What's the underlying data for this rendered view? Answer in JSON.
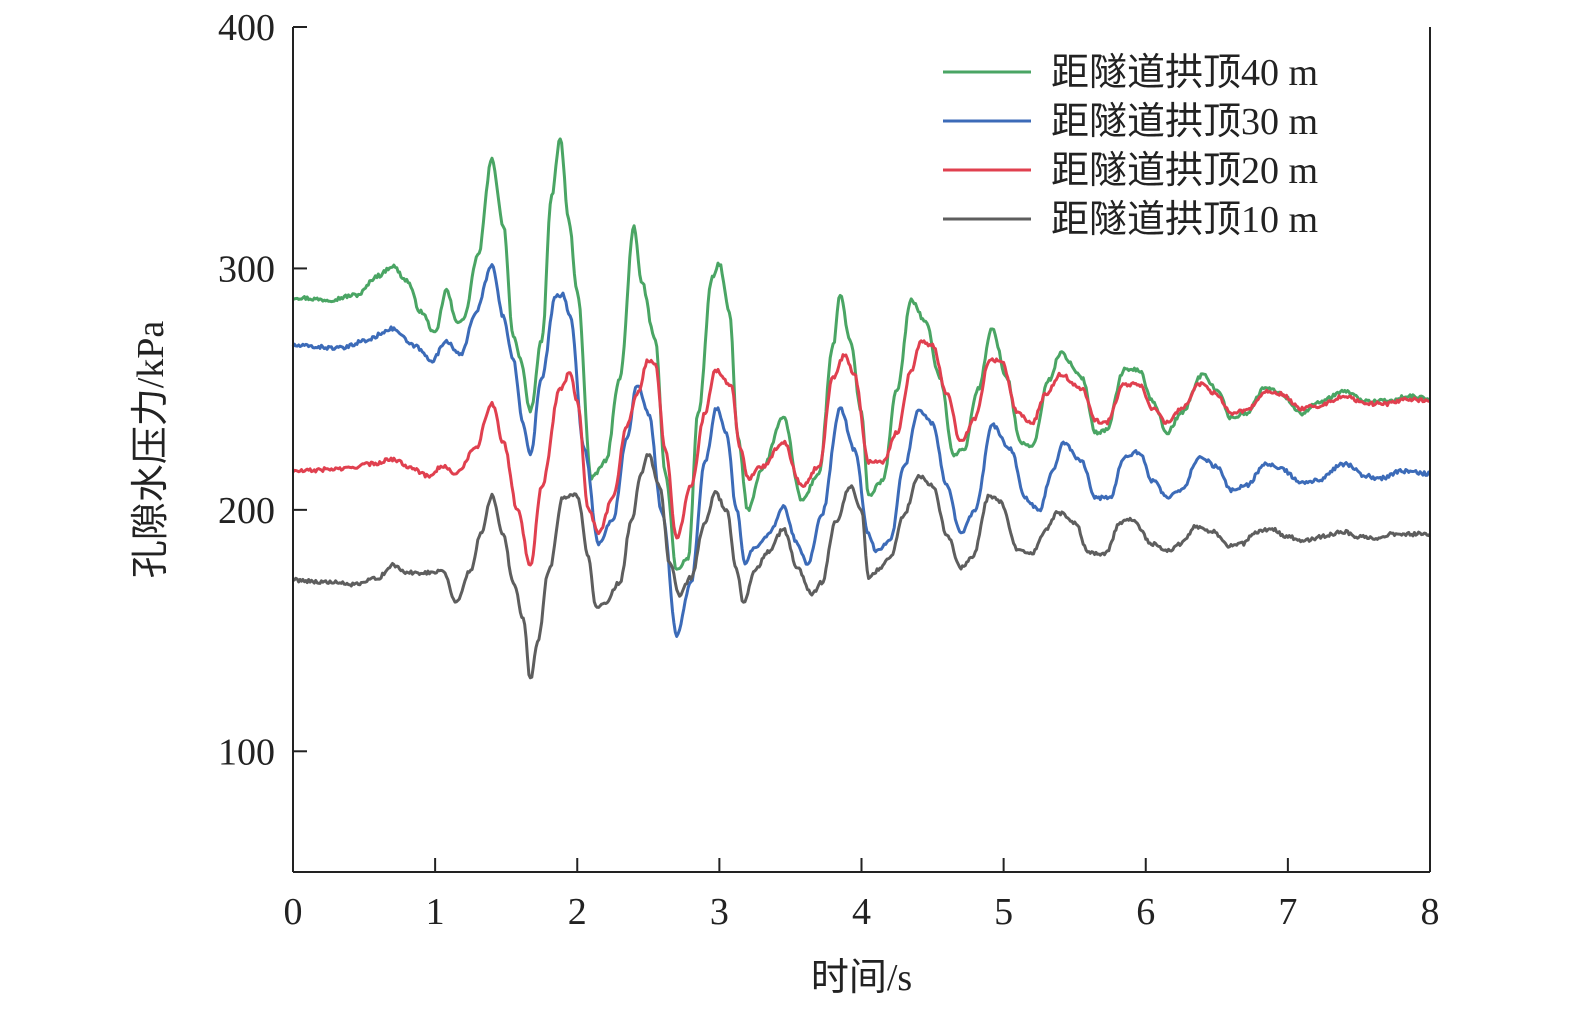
{
  "chart_data": {
    "type": "line",
    "title": "",
    "xlabel": "时间/s",
    "ylabel": "孔隙水压力/kPa",
    "xlim": [
      0,
      8
    ],
    "ylim": [
      50,
      400
    ],
    "xticks": [
      0,
      1,
      2,
      3,
      4,
      5,
      6,
      7,
      8
    ],
    "yticks": [
      100,
      200,
      300,
      400
    ],
    "grid": false,
    "legend_position": "top-right",
    "series": [
      {
        "name": "距隧道拱顶40 m",
        "color": "#4aa564",
        "points": [
          [
            0,
            288
          ],
          [
            0.25,
            287
          ],
          [
            0.45,
            289
          ],
          [
            0.6,
            297
          ],
          [
            0.7,
            301
          ],
          [
            0.8,
            295
          ],
          [
            0.9,
            282
          ],
          [
            1.0,
            273
          ],
          [
            1.08,
            291
          ],
          [
            1.15,
            278
          ],
          [
            1.2,
            279
          ],
          [
            1.3,
            305
          ],
          [
            1.4,
            345
          ],
          [
            1.48,
            318
          ],
          [
            1.55,
            272
          ],
          [
            1.6,
            262
          ],
          [
            1.67,
            241
          ],
          [
            1.75,
            270
          ],
          [
            1.82,
            330
          ],
          [
            1.88,
            354
          ],
          [
            1.94,
            320
          ],
          [
            2.0,
            290
          ],
          [
            2.1,
            213
          ],
          [
            2.2,
            220
          ],
          [
            2.3,
            255
          ],
          [
            2.4,
            317
          ],
          [
            2.45,
            295
          ],
          [
            2.55,
            270
          ],
          [
            2.62,
            215
          ],
          [
            2.7,
            175
          ],
          [
            2.78,
            180
          ],
          [
            2.85,
            240
          ],
          [
            2.95,
            296
          ],
          [
            3.0,
            302
          ],
          [
            3.07,
            282
          ],
          [
            3.13,
            230
          ],
          [
            3.2,
            200
          ],
          [
            3.3,
            217
          ],
          [
            3.45,
            238
          ],
          [
            3.58,
            204
          ],
          [
            3.7,
            215
          ],
          [
            3.8,
            268
          ],
          [
            3.85,
            289
          ],
          [
            3.92,
            270
          ],
          [
            4.0,
            240
          ],
          [
            4.05,
            206
          ],
          [
            4.15,
            212
          ],
          [
            4.25,
            250
          ],
          [
            4.35,
            287
          ],
          [
            4.45,
            278
          ],
          [
            4.55,
            255
          ],
          [
            4.65,
            223
          ],
          [
            4.72,
            225
          ],
          [
            4.82,
            250
          ],
          [
            4.92,
            275
          ],
          [
            5.02,
            255
          ],
          [
            5.12,
            228
          ],
          [
            5.2,
            226
          ],
          [
            5.32,
            254
          ],
          [
            5.4,
            265
          ],
          [
            5.55,
            255
          ],
          [
            5.65,
            232
          ],
          [
            5.72,
            233
          ],
          [
            5.85,
            258
          ],
          [
            5.95,
            258
          ],
          [
            6.05,
            245
          ],
          [
            6.15,
            232
          ],
          [
            6.25,
            240
          ],
          [
            6.4,
            256
          ],
          [
            6.5,
            250
          ],
          [
            6.6,
            238
          ],
          [
            6.7,
            240
          ],
          [
            6.85,
            251
          ],
          [
            6.95,
            248
          ],
          [
            7.1,
            240
          ],
          [
            7.2,
            244
          ],
          [
            7.4,
            249
          ],
          [
            7.55,
            245
          ],
          [
            7.7,
            245
          ],
          [
            7.85,
            247
          ],
          [
            8.0,
            246
          ]
        ]
      },
      {
        "name": "距隧道拱顶30 m",
        "color": "#3c6bb8",
        "points": [
          [
            0,
            268
          ],
          [
            0.35,
            267
          ],
          [
            0.5,
            270
          ],
          [
            0.7,
            275
          ],
          [
            0.85,
            268
          ],
          [
            0.98,
            262
          ],
          [
            1.08,
            270
          ],
          [
            1.18,
            264
          ],
          [
            1.28,
            281
          ],
          [
            1.4,
            301
          ],
          [
            1.48,
            280
          ],
          [
            1.55,
            262
          ],
          [
            1.62,
            235
          ],
          [
            1.67,
            223
          ],
          [
            1.75,
            255
          ],
          [
            1.85,
            289
          ],
          [
            1.9,
            289
          ],
          [
            1.95,
            280
          ],
          [
            2.05,
            225
          ],
          [
            2.15,
            186
          ],
          [
            2.25,
            196
          ],
          [
            2.35,
            230
          ],
          [
            2.42,
            252
          ],
          [
            2.5,
            240
          ],
          [
            2.6,
            198
          ],
          [
            2.7,
            148
          ],
          [
            2.8,
            170
          ],
          [
            2.9,
            220
          ],
          [
            2.98,
            242
          ],
          [
            3.05,
            232
          ],
          [
            3.12,
            200
          ],
          [
            3.18,
            178
          ],
          [
            3.25,
            185
          ],
          [
            3.35,
            190
          ],
          [
            3.45,
            201
          ],
          [
            3.55,
            186
          ],
          [
            3.62,
            177
          ],
          [
            3.72,
            198
          ],
          [
            3.85,
            242
          ],
          [
            3.95,
            225
          ],
          [
            4.05,
            190
          ],
          [
            4.1,
            183
          ],
          [
            4.2,
            187
          ],
          [
            4.3,
            218
          ],
          [
            4.4,
            241
          ],
          [
            4.5,
            236
          ],
          [
            4.6,
            210
          ],
          [
            4.7,
            190
          ],
          [
            4.8,
            200
          ],
          [
            4.92,
            235
          ],
          [
            5.05,
            225
          ],
          [
            5.15,
            205
          ],
          [
            5.25,
            200
          ],
          [
            5.35,
            217
          ],
          [
            5.42,
            228
          ],
          [
            5.55,
            220
          ],
          [
            5.65,
            205
          ],
          [
            5.75,
            205
          ],
          [
            5.85,
            222
          ],
          [
            5.95,
            224
          ],
          [
            6.05,
            212
          ],
          [
            6.15,
            205
          ],
          [
            6.25,
            208
          ],
          [
            6.38,
            222
          ],
          [
            6.5,
            218
          ],
          [
            6.6,
            208
          ],
          [
            6.7,
            210
          ],
          [
            6.85,
            219
          ],
          [
            6.95,
            217
          ],
          [
            7.1,
            211
          ],
          [
            7.2,
            212
          ],
          [
            7.4,
            219
          ],
          [
            7.55,
            214
          ],
          [
            7.65,
            213
          ],
          [
            7.8,
            216
          ],
          [
            8.0,
            215
          ]
        ]
      },
      {
        "name": "距隧道拱顶20 m",
        "color": "#e0404f",
        "points": [
          [
            0,
            216
          ],
          [
            0.35,
            217
          ],
          [
            0.55,
            219
          ],
          [
            0.7,
            221
          ],
          [
            0.82,
            218
          ],
          [
            0.95,
            214
          ],
          [
            1.05,
            218
          ],
          [
            1.15,
            215
          ],
          [
            1.28,
            225
          ],
          [
            1.4,
            244
          ],
          [
            1.48,
            228
          ],
          [
            1.58,
            200
          ],
          [
            1.67,
            177
          ],
          [
            1.75,
            210
          ],
          [
            1.88,
            250
          ],
          [
            1.95,
            257
          ],
          [
            2.0,
            245
          ],
          [
            2.08,
            200
          ],
          [
            2.15,
            190
          ],
          [
            2.25,
            205
          ],
          [
            2.35,
            235
          ],
          [
            2.42,
            248
          ],
          [
            2.5,
            262
          ],
          [
            2.55,
            260
          ],
          [
            2.62,
            225
          ],
          [
            2.7,
            188
          ],
          [
            2.8,
            210
          ],
          [
            2.9,
            240
          ],
          [
            2.97,
            258
          ],
          [
            3.08,
            252
          ],
          [
            3.15,
            225
          ],
          [
            3.2,
            213
          ],
          [
            3.3,
            218
          ],
          [
            3.45,
            228
          ],
          [
            3.58,
            210
          ],
          [
            3.7,
            218
          ],
          [
            3.8,
            255
          ],
          [
            3.88,
            264
          ],
          [
            3.95,
            256
          ],
          [
            4.05,
            220
          ],
          [
            4.15,
            220
          ],
          [
            4.25,
            232
          ],
          [
            4.35,
            258
          ],
          [
            4.42,
            270
          ],
          [
            4.5,
            268
          ],
          [
            4.6,
            248
          ],
          [
            4.7,
            228
          ],
          [
            4.8,
            238
          ],
          [
            4.9,
            262
          ],
          [
            4.98,
            262
          ],
          [
            5.1,
            240
          ],
          [
            5.2,
            236
          ],
          [
            5.3,
            248
          ],
          [
            5.4,
            256
          ],
          [
            5.55,
            250
          ],
          [
            5.65,
            237
          ],
          [
            5.72,
            236
          ],
          [
            5.85,
            252
          ],
          [
            5.95,
            252
          ],
          [
            6.05,
            242
          ],
          [
            6.15,
            236
          ],
          [
            6.25,
            242
          ],
          [
            6.38,
            252
          ],
          [
            6.5,
            248
          ],
          [
            6.6,
            240
          ],
          [
            6.7,
            241
          ],
          [
            6.85,
            249
          ],
          [
            6.95,
            248
          ],
          [
            7.1,
            242
          ],
          [
            7.2,
            243
          ],
          [
            7.4,
            247
          ],
          [
            7.55,
            244
          ],
          [
            7.7,
            244
          ],
          [
            7.85,
            246
          ],
          [
            8.0,
            245
          ]
        ]
      },
      {
        "name": "距隧道拱顶10 m",
        "color": "#5e5e5e",
        "points": [
          [
            0,
            171
          ],
          [
            0.25,
            170
          ],
          [
            0.45,
            169
          ],
          [
            0.6,
            172
          ],
          [
            0.7,
            177
          ],
          [
            0.8,
            174
          ],
          [
            0.95,
            174
          ],
          [
            1.05,
            175
          ],
          [
            1.15,
            162
          ],
          [
            1.25,
            175
          ],
          [
            1.32,
            190
          ],
          [
            1.4,
            206
          ],
          [
            1.48,
            190
          ],
          [
            1.55,
            170
          ],
          [
            1.62,
            155
          ],
          [
            1.67,
            130
          ],
          [
            1.72,
            145
          ],
          [
            1.8,
            175
          ],
          [
            1.9,
            205
          ],
          [
            2.0,
            206
          ],
          [
            2.08,
            180
          ],
          [
            2.13,
            160
          ],
          [
            2.2,
            162
          ],
          [
            2.3,
            170
          ],
          [
            2.38,
            195
          ],
          [
            2.45,
            215
          ],
          [
            2.5,
            223
          ],
          [
            2.58,
            210
          ],
          [
            2.65,
            178
          ],
          [
            2.72,
            165
          ],
          [
            2.8,
            172
          ],
          [
            2.9,
            195
          ],
          [
            2.97,
            207
          ],
          [
            3.05,
            200
          ],
          [
            3.12,
            175
          ],
          [
            3.17,
            161
          ],
          [
            3.25,
            175
          ],
          [
            3.35,
            183
          ],
          [
            3.45,
            192
          ],
          [
            3.55,
            176
          ],
          [
            3.65,
            165
          ],
          [
            3.72,
            170
          ],
          [
            3.82,
            195
          ],
          [
            3.92,
            210
          ],
          [
            4.0,
            200
          ],
          [
            4.05,
            172
          ],
          [
            4.12,
            175
          ],
          [
            4.2,
            180
          ],
          [
            4.3,
            198
          ],
          [
            4.4,
            214
          ],
          [
            4.5,
            210
          ],
          [
            4.6,
            190
          ],
          [
            4.7,
            176
          ],
          [
            4.78,
            180
          ],
          [
            4.9,
            206
          ],
          [
            4.98,
            203
          ],
          [
            5.1,
            183
          ],
          [
            5.2,
            182
          ],
          [
            5.3,
            192
          ],
          [
            5.38,
            199
          ],
          [
            5.5,
            195
          ],
          [
            5.6,
            182
          ],
          [
            5.72,
            182
          ],
          [
            5.82,
            195
          ],
          [
            5.9,
            196
          ],
          [
            6.05,
            186
          ],
          [
            6.15,
            183
          ],
          [
            6.25,
            186
          ],
          [
            6.35,
            193
          ],
          [
            6.48,
            191
          ],
          [
            6.58,
            185
          ],
          [
            6.68,
            186
          ],
          [
            6.78,
            191
          ],
          [
            6.88,
            192
          ],
          [
            7.0,
            189
          ],
          [
            7.1,
            187
          ],
          [
            7.25,
            189
          ],
          [
            7.38,
            191
          ],
          [
            7.5,
            189
          ],
          [
            7.6,
            188
          ],
          [
            7.75,
            190
          ],
          [
            8.0,
            190
          ]
        ]
      }
    ]
  }
}
